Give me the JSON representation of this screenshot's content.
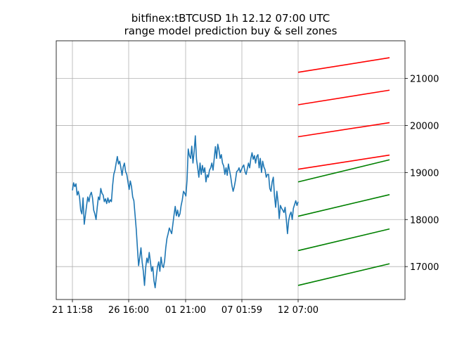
{
  "chart_data": {
    "type": "line",
    "title": "bitfinex:tBTCUSD 1h 12.12 07:00 UTC",
    "subtitle": "range model prediction buy & sell zones",
    "xlabel": "",
    "ylabel": "",
    "x_tick_labels": [
      "21 11:58",
      "26 16:00",
      "01 21:00",
      "07 01:59",
      "12 07:00"
    ],
    "y_tick_values": [
      17000,
      18000,
      19000,
      20000,
      21000
    ],
    "y_axis_position": "right",
    "ylim": [
      16300,
      21800
    ],
    "grid": true,
    "colors": {
      "price": "#1f77b4",
      "sell": "#ff0000",
      "buy": "#008000"
    },
    "price_series": {
      "name": "",
      "values": [
        18620,
        18780,
        18700,
        18760,
        18520,
        18600,
        18480,
        18200,
        18120,
        18460,
        17900,
        18100,
        18300,
        18480,
        18380,
        18520,
        18580,
        18460,
        18200,
        18120,
        18000,
        18260,
        18480,
        18420,
        18660,
        18560,
        18520,
        18380,
        18440,
        18340,
        18460,
        18360,
        18420,
        18380,
        18720,
        18960,
        19050,
        19200,
        19340,
        19180,
        19240,
        19100,
        18940,
        19120,
        19200,
        19020,
        18960,
        18800,
        18640,
        18820,
        18700,
        18480,
        18400,
        18100,
        17800,
        17400,
        17020,
        17200,
        17400,
        17100,
        16900,
        16600,
        16980,
        17180,
        17080,
        17300,
        17100,
        16900,
        17000,
        16700,
        16550,
        16780,
        17000,
        17100,
        16900,
        17200,
        17020,
        16980,
        17120,
        17400,
        17600,
        17700,
        17820,
        17760,
        17700,
        17900,
        18100,
        18280,
        18080,
        18200,
        18060,
        18120,
        18300,
        18420,
        18600,
        18560,
        18500,
        18840,
        19500,
        19360,
        19300,
        19560,
        19200,
        19440,
        19780,
        19280,
        19100,
        18900,
        19200,
        18960,
        19150,
        19000,
        19100,
        18800,
        18950,
        18900,
        19050,
        19100,
        19200,
        19050,
        19300,
        19550,
        19300,
        19600,
        19480,
        19300,
        19380,
        19200,
        19140,
        18960,
        19100,
        18940,
        19180,
        19040,
        18900,
        18720,
        18600,
        18700,
        18840,
        19020,
        19040,
        19100,
        19000,
        19060,
        19120,
        19160,
        19020,
        18960,
        19080,
        19200,
        19100,
        19300,
        19420,
        19280,
        19360,
        19200,
        19340,
        19380,
        19100,
        19300,
        19000,
        19240,
        19120,
        19060,
        18900,
        18960,
        18960,
        18660,
        18600,
        18800,
        18900,
        18500,
        18260,
        18600,
        18380,
        18020,
        18300,
        18240,
        18200,
        18150,
        18260,
        18000,
        17700,
        17980,
        18100,
        18160,
        18000,
        18240,
        18320,
        18400,
        18300,
        18380
      ]
    },
    "zone_x_range": [
      "12 07:00",
      ""
    ],
    "sell_zones": [
      {
        "start": 21130,
        "end": 21440
      },
      {
        "start": 20440,
        "end": 20750
      },
      {
        "start": 19760,
        "end": 20060
      },
      {
        "start": 19070,
        "end": 19370
      }
    ],
    "buy_zones": [
      {
        "start": 18800,
        "end": 19270
      },
      {
        "start": 18070,
        "end": 18530
      },
      {
        "start": 17340,
        "end": 17800
      },
      {
        "start": 16600,
        "end": 17060
      }
    ]
  }
}
